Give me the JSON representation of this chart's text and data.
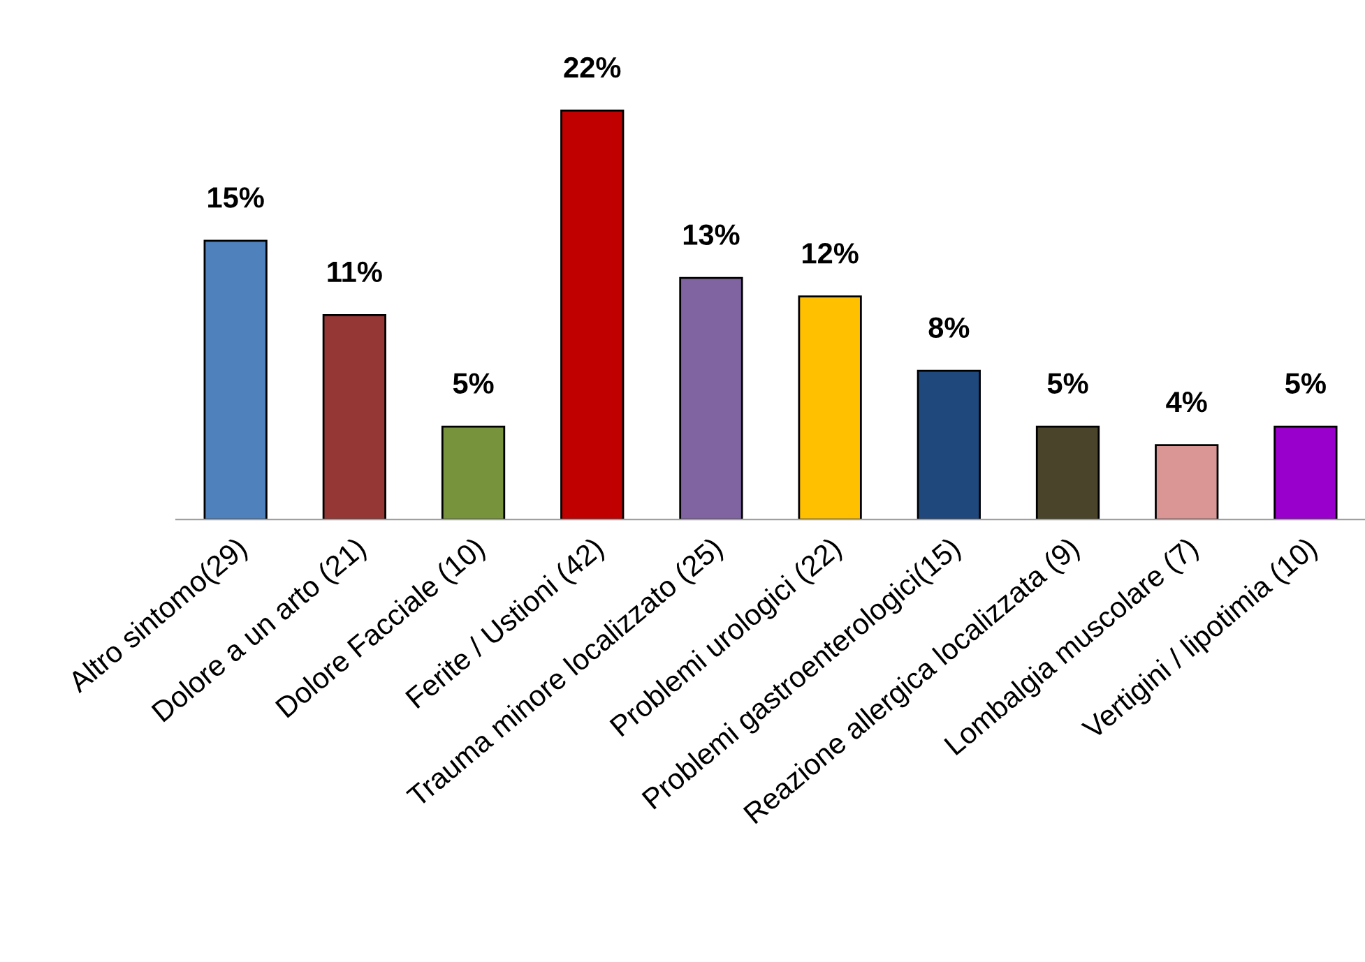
{
  "chart_data": {
    "type": "bar",
    "categories": [
      "Altro sintomo(29)",
      "Dolore a un arto (21)",
      "Dolore Facciale (10)",
      "Ferite / Ustioni (42)",
      "Trauma minore localizzato (25)",
      "Problemi urologici (22)",
      "Problemi gastroenterologici(15)",
      "Reazione allergica localizzata (9)",
      "Lombalgia muscolare (7)",
      "Vertigini / lipotimia (10)"
    ],
    "values": [
      15,
      11,
      5,
      22,
      13,
      12,
      8,
      5,
      4,
      5
    ],
    "colors": [
      "#4f81bd",
      "#953735",
      "#77933c",
      "#c00000",
      "#8064a2",
      "#ffc000",
      "#1f497d",
      "#4a452a",
      "#d99694",
      "#9900cc"
    ],
    "value_labels": [
      "15%",
      "11%",
      "5%",
      "22%",
      "13%",
      "12%",
      "8%",
      "5%",
      "4%",
      "5%"
    ],
    "grid": false,
    "legend": false
  }
}
